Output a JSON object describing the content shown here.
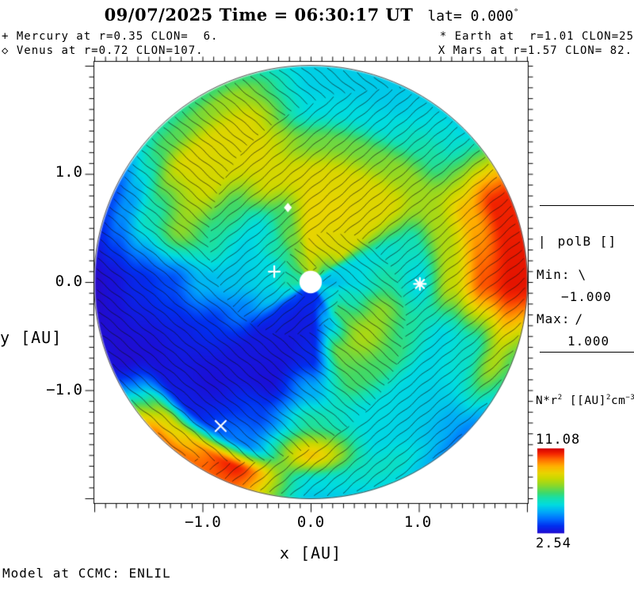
{
  "title": {
    "main": "09/07/2025 Time = 06:30:17 UT",
    "lat": "lat= 0.000",
    "degree": "°"
  },
  "legend": {
    "mercury": {
      "symbol": "+",
      "text": " Mercury at r=0.35 CLON=  6."
    },
    "venus": {
      "symbol": "◇",
      "text": " Venus at r=0.72 CLON=107."
    },
    "earth": {
      "symbol": "*",
      "text": " Earth at  r=1.01 CLON=25"
    },
    "mars": {
      "symbol": "X",
      "text": " Mars at r=1.57 CLON= 82."
    }
  },
  "axes": {
    "y_label": "y [AU]",
    "x_label": "x [AU]",
    "y_ticks": [
      "1.0",
      "0.0",
      "−1.0"
    ],
    "x_ticks": [
      "−1.0",
      "0.0",
      "1.0"
    ]
  },
  "polb_panel": {
    "bar_symbol": "|",
    "label": "polB []",
    "min_label": "Min:",
    "min_symbol": "\\",
    "min_value": "−1.000",
    "max_label": "Max:",
    "max_symbol": "/",
    "max_value": "1.000"
  },
  "colorbar": {
    "label_prefix": "N*r",
    "label_sup1": "2",
    "label_mid": " [[AU]",
    "label_sup2": "2",
    "label_unit": "cm",
    "label_sup3": "−3",
    "max_value": "11.08",
    "min_value": "2.54"
  },
  "footer": "Model at CCMC: ENLIL",
  "chart_data": {
    "type": "heatmap",
    "projection": "polar-ecliptic-slice",
    "title": "09/07/2025 Time = 06:30:17 UT lat= 0.000°",
    "model": "ENLIL at CCMC",
    "xlabel": "x [AU]",
    "ylabel": "y [AU]",
    "x_range_au": [
      -2.05,
      2.05
    ],
    "y_range_au": [
      -2.05,
      2.05
    ],
    "disk_radius_au": 2.0,
    "inner_boundary_au": 0.1,
    "quantity": "N*r2 [[AU]2 cm-3]",
    "colorbar": {
      "min": 2.54,
      "max": 11.08
    },
    "polB": {
      "min": -1.0,
      "max": 1.0,
      "min_hatch": "\\",
      "max_hatch": "/"
    },
    "planets": [
      {
        "name": "Mercury",
        "symbol": "plus",
        "r_au": 0.35,
        "clon": 6,
        "plot_angle_deg": 164
      },
      {
        "name": "Venus",
        "symbol": "diamond",
        "r_au": 0.72,
        "clon": 107,
        "plot_angle_deg": 107
      },
      {
        "name": "Earth",
        "symbol": "asterisk",
        "r_au": 1.01,
        "clon": 25,
        "plot_angle_deg": 359
      },
      {
        "name": "Mars",
        "symbol": "X",
        "r_au": 1.57,
        "clon": 82,
        "plot_angle_deg": 238
      }
    ],
    "field": {
      "angles_deg": [
        0,
        22.5,
        45,
        67.5,
        90,
        112.5,
        135,
        157.5,
        180,
        202.5,
        225,
        247.5,
        270,
        292.5,
        315,
        337.5
      ],
      "radii_au": [
        0.15,
        0.4,
        0.7,
        1.0,
        1.3,
        1.6,
        1.85,
        2.0
      ],
      "values": [
        [
          0.3,
          0.35,
          0.45,
          0.35,
          0.65,
          0.9,
          0.97,
          0.97
        ],
        [
          0.33,
          0.35,
          0.38,
          0.42,
          0.62,
          0.8,
          0.95,
          0.95
        ],
        [
          0.5,
          0.68,
          0.7,
          0.7,
          0.6,
          0.45,
          0.38,
          0.35
        ],
        [
          0.6,
          0.7,
          0.72,
          0.7,
          0.55,
          0.36,
          0.33,
          0.33
        ],
        [
          0.65,
          0.72,
          0.72,
          0.7,
          0.55,
          0.36,
          0.34,
          0.34
        ],
        [
          0.6,
          0.55,
          0.5,
          0.68,
          0.7,
          0.7,
          0.6,
          0.5
        ],
        [
          0.5,
          0.45,
          0.36,
          0.5,
          0.68,
          0.7,
          0.52,
          0.45
        ],
        [
          0.45,
          0.36,
          0.34,
          0.45,
          0.58,
          0.42,
          0.25,
          0.15
        ],
        [
          0.45,
          0.35,
          0.32,
          0.3,
          0.15,
          0.1,
          0.05,
          0.03
        ],
        [
          0.36,
          0.32,
          0.22,
          0.12,
          0.08,
          0.05,
          0.04,
          0.05
        ],
        [
          0.15,
          0.1,
          0.07,
          0.06,
          0.05,
          0.08,
          0.7,
          0.85
        ],
        [
          0.1,
          0.07,
          0.06,
          0.05,
          0.14,
          0.22,
          0.95,
          0.9
        ],
        [
          0.1,
          0.08,
          0.1,
          0.28,
          0.45,
          0.75,
          0.36,
          0.33
        ],
        [
          0.12,
          0.3,
          0.55,
          0.5,
          0.36,
          0.35,
          0.4,
          0.36
        ],
        [
          0.3,
          0.5,
          0.62,
          0.5,
          0.35,
          0.33,
          0.28,
          0.22
        ],
        [
          0.35,
          0.42,
          0.58,
          0.45,
          0.35,
          0.4,
          0.62,
          0.52
        ]
      ]
    },
    "colormap": [
      [
        0.0,
        "#3a00b0"
      ],
      [
        0.05,
        "#1a10d8"
      ],
      [
        0.12,
        "#0030f0"
      ],
      [
        0.2,
        "#0070ff"
      ],
      [
        0.28,
        "#00aaf8"
      ],
      [
        0.36,
        "#00dce0"
      ],
      [
        0.44,
        "#18e0a8"
      ],
      [
        0.5,
        "#40d968"
      ],
      [
        0.58,
        "#8cd828"
      ],
      [
        0.66,
        "#c8d800"
      ],
      [
        0.72,
        "#e8d400"
      ],
      [
        0.8,
        "#ffb000"
      ],
      [
        0.88,
        "#ff6a00"
      ],
      [
        0.94,
        "#f52800"
      ],
      [
        1.0,
        "#d40000"
      ]
    ],
    "hatch": {
      "pitch_deg_per_ln_au": 140,
      "pos_sector_deg": [
        330,
        160
      ],
      "angle_deg": 40,
      "spacing_px": 10
    }
  }
}
